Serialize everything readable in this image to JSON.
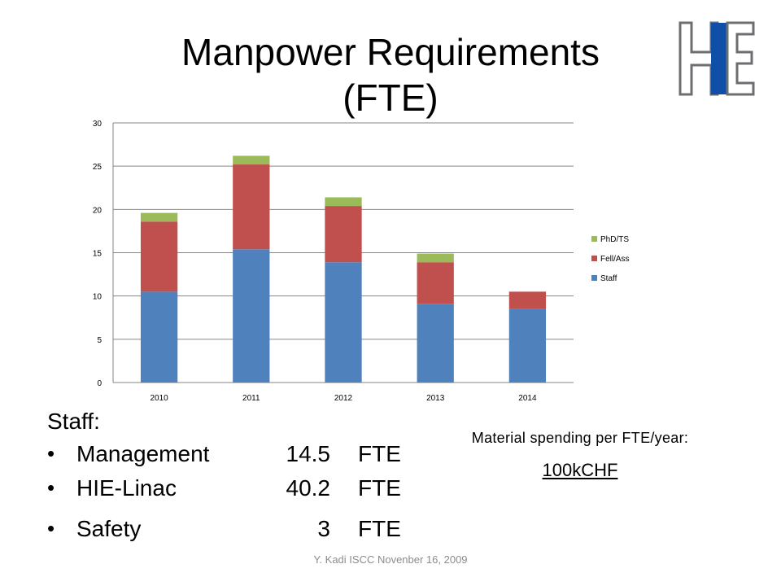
{
  "slide": {
    "title_line1": "Manpower Requirements",
    "title_line2": "(FTE)",
    "logo_letters": "HIE",
    "footer": "Y. Kadi  ISCC Novenber 16, 2009"
  },
  "staff_section": {
    "heading": "Staff:",
    "items": [
      {
        "name": "Management",
        "value": "14.5",
        "unit": "FTE"
      },
      {
        "name": "HIE-Linac",
        "value": "40.2",
        "unit": "FTE"
      },
      {
        "name": "Safety",
        "value": "3",
        "unit": "FTE"
      }
    ],
    "bullet": "•"
  },
  "material": {
    "label": "Material spending per FTE/year:",
    "value": "100kCHF"
  },
  "chart_data": {
    "type": "bar",
    "stacked": true,
    "categories": [
      "2010",
      "2011",
      "2012",
      "2013",
      "2014"
    ],
    "series": [
      {
        "name": "Staff",
        "values": [
          10.5,
          15.4,
          13.9,
          9.1,
          8.5
        ],
        "color": "#4f81bd"
      },
      {
        "name": "Fell/Ass",
        "values": [
          8.1,
          9.8,
          6.5,
          4.8,
          2.0
        ],
        "color": "#c0504d"
      },
      {
        "name": "PhD/TS",
        "values": [
          1.0,
          1.0,
          1.0,
          1.0,
          0.0
        ],
        "color": "#9bbb59"
      }
    ],
    "ylim": [
      0,
      30
    ],
    "yticks": [
      "0",
      "5",
      "10",
      "15",
      "20",
      "25",
      "30"
    ],
    "grid": true,
    "legend_position": "right",
    "title": "",
    "xlabel": "",
    "ylabel": ""
  },
  "colors": {
    "gridline": "#868686",
    "logo_blue": "#0f4fa8",
    "logo_outline": "#6d6e71"
  }
}
